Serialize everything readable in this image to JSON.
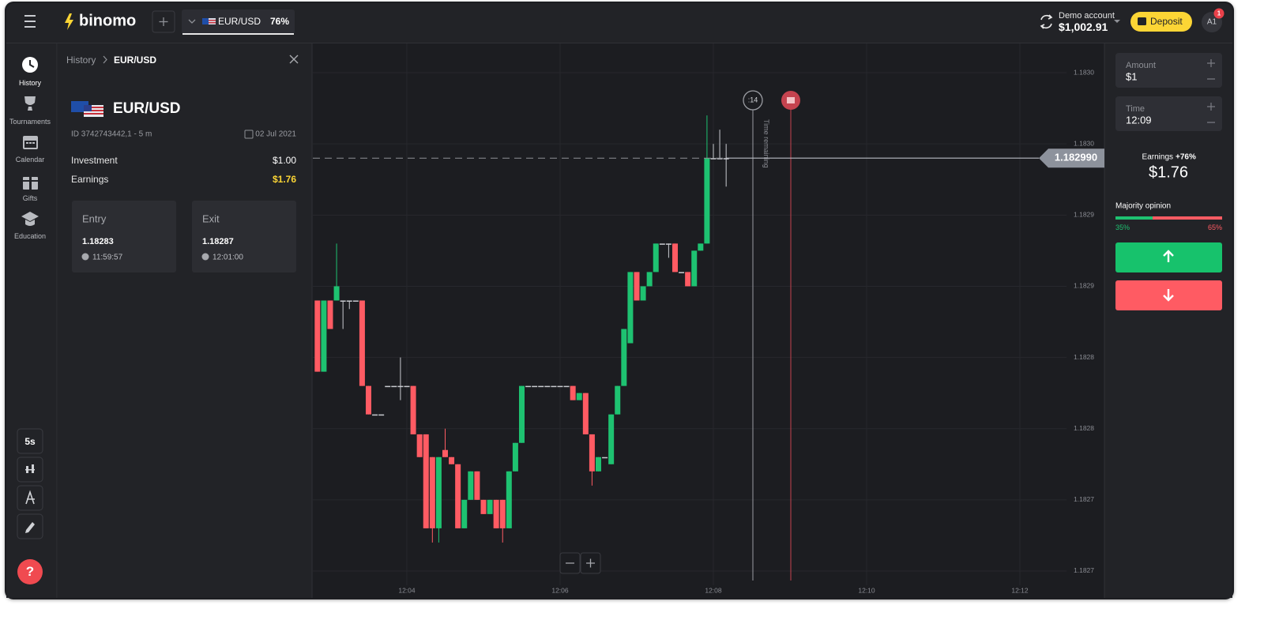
{
  "header": {
    "logo": "binomo",
    "asset": "EUR/USD",
    "payout": "76%",
    "account_label": "Demo account",
    "balance": "$1,002.91",
    "deposit": "Deposit",
    "avatar": "A1",
    "badge": "1"
  },
  "nav": [
    "History",
    "Tournaments",
    "Calendar",
    "Gifts",
    "Education"
  ],
  "tools": {
    "timeframe": "5s",
    "help": "?"
  },
  "history": {
    "breadcrumb_root": "History",
    "breadcrumb_asset": "EUR/USD",
    "asset": "EUR/USD",
    "id": "ID 3742743442,1 - 5 m",
    "date": "02 Jul 2021",
    "investment_label": "Investment",
    "investment": "$1.00",
    "earnings_label": "Earnings",
    "earnings": "$1.76",
    "entry": {
      "label": "Entry",
      "price": "1.18283",
      "time": "11:59:57"
    },
    "exit": {
      "label": "Exit",
      "price": "1.18287",
      "time": "12:01:00"
    }
  },
  "chart_overlay": {
    "countdown": ":14",
    "time_remaining": "Time remaining"
  },
  "trade_panel": {
    "amount_label": "Amount",
    "amount": "$1",
    "time_label": "Time",
    "time": "12:09",
    "earnings_label": "Earnings",
    "earnings_rate": "+76%",
    "earnings": "$1.76",
    "majority_label": "Majority opinion",
    "up_share": "35%",
    "down_share": "65%"
  },
  "chart_data": {
    "type": "candlestick",
    "up_color": "#1ec271",
    "down_color": "#ff5b63",
    "grid": true,
    "xlim": [
      166.4,
      756.5
    ],
    "xticks": [
      {
        "value": 240,
        "label": "12:04"
      },
      {
        "value": 360,
        "label": "12:06"
      },
      {
        "value": 480,
        "label": "12:08"
      },
      {
        "value": 600,
        "label": "12:10"
      },
      {
        "value": 720,
        "label": "12:12"
      }
    ],
    "ylim": [
      1.18269,
      1.18307
    ],
    "yticks": [
      {
        "value": 1.18305,
        "label": "1.1830"
      },
      {
        "value": 1.183,
        "label": "1.1830"
      },
      {
        "value": 1.18295,
        "label": "1.1829"
      },
      {
        "value": 1.1829,
        "label": "1.1829"
      },
      {
        "value": 1.18285,
        "label": "1.1828"
      },
      {
        "value": 1.1828,
        "label": "1.1828"
      },
      {
        "value": 1.18275,
        "label": "1.1827"
      },
      {
        "value": 1.1827,
        "label": "1.1827"
      }
    ],
    "current_price": {
      "value": 1.18299,
      "label": "1.182990"
    },
    "x": [
      170,
      175,
      180,
      185,
      190,
      195,
      200,
      205,
      210,
      215,
      220,
      225,
      230,
      235,
      240,
      245,
      250,
      255,
      260,
      265,
      270,
      275,
      280,
      285,
      290,
      295,
      300,
      305,
      310,
      315,
      320,
      325,
      330,
      335,
      340,
      345,
      350,
      355,
      360,
      365,
      370,
      375,
      380,
      385,
      390,
      395,
      400,
      405,
      410,
      415,
      420,
      425,
      430,
      435,
      440,
      445,
      450,
      455,
      460,
      465,
      470,
      475,
      480,
      485,
      490
    ],
    "candles": [
      {
        "o": 1.18289,
        "h": 1.18289,
        "l": 1.18284,
        "c": 1.18284
      },
      {
        "o": 1.18284,
        "h": 1.18289,
        "l": 1.18284,
        "c": 1.18289
      },
      {
        "o": 1.18289,
        "h": 1.18289,
        "l": 1.18287,
        "c": 1.18287
      },
      {
        "o": 1.18289,
        "h": 1.18293,
        "l": 1.18289,
        "c": 1.1829
      },
      {
        "o": 1.18289,
        "h": 1.18289,
        "l": 1.18287,
        "c": 1.18289
      },
      {
        "o": 1.18289,
        "h": 1.18289,
        "l": 1.182884,
        "c": 1.18289
      },
      {
        "o": 1.18289,
        "h": 1.18289,
        "l": 1.18289,
        "c": 1.18289
      },
      {
        "o": 1.18289,
        "h": 1.18289,
        "l": 1.18283,
        "c": 1.18283
      },
      {
        "o": 1.18283,
        "h": 1.18283,
        "l": 1.18281,
        "c": 1.18281
      },
      {
        "o": 1.18281,
        "h": 1.18281,
        "l": 1.18281,
        "c": 1.18281
      },
      {
        "o": 1.18281,
        "h": 1.18281,
        "l": 1.18281,
        "c": 1.18281
      },
      {
        "o": 1.18283,
        "h": 1.18283,
        "l": 1.18283,
        "c": 1.18283
      },
      {
        "o": 1.18283,
        "h": 1.18283,
        "l": 1.18283,
        "c": 1.18283
      },
      {
        "o": 1.18283,
        "h": 1.18285,
        "l": 1.18282,
        "c": 1.18283
      },
      {
        "o": 1.18283,
        "h": 1.18283,
        "l": 1.18283,
        "c": 1.18283
      },
      {
        "o": 1.18283,
        "h": 1.18283,
        "l": 1.182796,
        "c": 1.182796
      },
      {
        "o": 1.182796,
        "h": 1.182796,
        "l": 1.18278,
        "c": 1.18278
      },
      {
        "o": 1.182796,
        "h": 1.182796,
        "l": 1.18273,
        "c": 1.18273
      },
      {
        "o": 1.18278,
        "h": 1.18278,
        "l": 1.18272,
        "c": 1.18273
      },
      {
        "o": 1.18273,
        "h": 1.18278,
        "l": 1.18272,
        "c": 1.18278
      },
      {
        "o": 1.182785,
        "h": 1.1828,
        "l": 1.18278,
        "c": 1.18278
      },
      {
        "o": 1.18278,
        "h": 1.18278,
        "l": 1.182775,
        "c": 1.182775
      },
      {
        "o": 1.182775,
        "h": 1.182775,
        "l": 1.18273,
        "c": 1.18273
      },
      {
        "o": 1.18273,
        "h": 1.18275,
        "l": 1.18273,
        "c": 1.18275
      },
      {
        "o": 1.18275,
        "h": 1.18277,
        "l": 1.18275,
        "c": 1.18277
      },
      {
        "o": 1.18277,
        "h": 1.18277,
        "l": 1.18275,
        "c": 1.18275
      },
      {
        "o": 1.18275,
        "h": 1.18275,
        "l": 1.18274,
        "c": 1.18274
      },
      {
        "o": 1.18274,
        "h": 1.18275,
        "l": 1.18274,
        "c": 1.18275
      },
      {
        "o": 1.18275,
        "h": 1.18275,
        "l": 1.18273,
        "c": 1.18273
      },
      {
        "o": 1.18275,
        "h": 1.18275,
        "l": 1.18272,
        "c": 1.18273
      },
      {
        "o": 1.18273,
        "h": 1.18277,
        "l": 1.18273,
        "c": 1.18277
      },
      {
        "o": 1.18277,
        "h": 1.18279,
        "l": 1.18277,
        "c": 1.18279
      },
      {
        "o": 1.18279,
        "h": 1.18283,
        "l": 1.18279,
        "c": 1.18283
      },
      {
        "o": 1.18283,
        "h": 1.18283,
        "l": 1.18283,
        "c": 1.18283
      },
      {
        "o": 1.18283,
        "h": 1.18283,
        "l": 1.18283,
        "c": 1.18283
      },
      {
        "o": 1.18283,
        "h": 1.18283,
        "l": 1.18283,
        "c": 1.18283
      },
      {
        "o": 1.18283,
        "h": 1.18283,
        "l": 1.18283,
        "c": 1.18283
      },
      {
        "o": 1.18283,
        "h": 1.18283,
        "l": 1.18283,
        "c": 1.18283
      },
      {
        "o": 1.18283,
        "h": 1.18283,
        "l": 1.18283,
        "c": 1.18283
      },
      {
        "o": 1.18283,
        "h": 1.18283,
        "l": 1.18283,
        "c": 1.18283
      },
      {
        "o": 1.18283,
        "h": 1.18283,
        "l": 1.18282,
        "c": 1.18282
      },
      {
        "o": 1.18282,
        "h": 1.182825,
        "l": 1.18282,
        "c": 1.182825
      },
      {
        "o": 1.182825,
        "h": 1.182825,
        "l": 1.182796,
        "c": 1.182796
      },
      {
        "o": 1.182796,
        "h": 1.182796,
        "l": 1.18276,
        "c": 1.18277
      },
      {
        "o": 1.18277,
        "h": 1.18278,
        "l": 1.18277,
        "c": 1.18278
      },
      {
        "o": 1.18278,
        "h": 1.18278,
        "l": 1.18278,
        "c": 1.18278
      },
      {
        "o": 1.182775,
        "h": 1.18281,
        "l": 1.182775,
        "c": 1.18281
      },
      {
        "o": 1.18281,
        "h": 1.18283,
        "l": 1.18281,
        "c": 1.18283
      },
      {
        "o": 1.18283,
        "h": 1.18287,
        "l": 1.18283,
        "c": 1.18287
      },
      {
        "o": 1.18286,
        "h": 1.18291,
        "l": 1.18286,
        "c": 1.18291
      },
      {
        "o": 1.18291,
        "h": 1.18291,
        "l": 1.18289,
        "c": 1.18289
      },
      {
        "o": 1.18289,
        "h": 1.1829,
        "l": 1.18289,
        "c": 1.1829
      },
      {
        "o": 1.1829,
        "h": 1.18291,
        "l": 1.1829,
        "c": 1.18291
      },
      {
        "o": 1.18291,
        "h": 1.18293,
        "l": 1.18291,
        "c": 1.18293
      },
      {
        "o": 1.18293,
        "h": 1.18293,
        "l": 1.18293,
        "c": 1.18293
      },
      {
        "o": 1.18293,
        "h": 1.18293,
        "l": 1.18292,
        "c": 1.18293
      },
      {
        "o": 1.18293,
        "h": 1.18293,
        "l": 1.18291,
        "c": 1.18291
      },
      {
        "o": 1.18291,
        "h": 1.18291,
        "l": 1.18291,
        "c": 1.18291
      },
      {
        "o": 1.18291,
        "h": 1.18291,
        "l": 1.1829,
        "c": 1.1829
      },
      {
        "o": 1.1829,
        "h": 1.182925,
        "l": 1.1829,
        "c": 1.182925
      },
      {
        "o": 1.182925,
        "h": 1.18293,
        "l": 1.182925,
        "c": 1.18293
      },
      {
        "o": 1.18293,
        "h": 1.18302,
        "l": 1.18293,
        "c": 1.18299
      },
      {
        "o": 1.18299,
        "h": 1.183,
        "l": 1.18299,
        "c": 1.18299
      },
      {
        "o": 1.18299,
        "h": 1.18301,
        "l": 1.18299,
        "c": 1.18299
      },
      {
        "o": 1.18299,
        "h": 1.183,
        "l": 1.18297,
        "c": 1.18299
      }
    ]
  }
}
